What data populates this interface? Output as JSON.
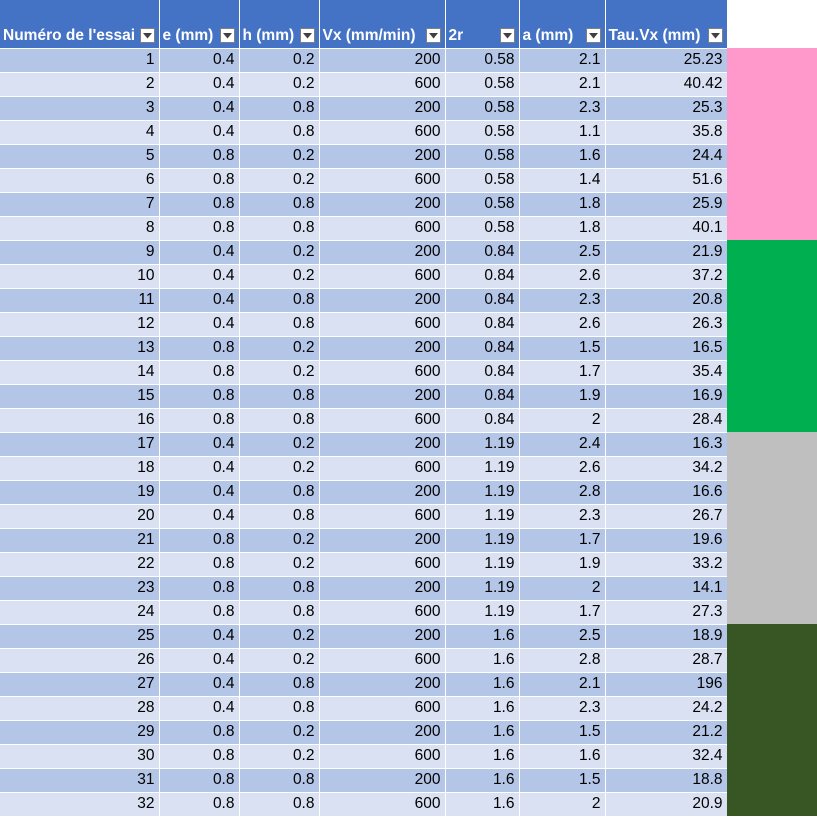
{
  "headers": [
    "Numéro de l'essai",
    "e (mm)",
    "h (mm)",
    "Vx (mm/min)",
    "2r",
    "a (mm)",
    "Tau.Vx (mm)"
  ],
  "rows": [
    [
      "1",
      "0.4",
      "0.2",
      "200",
      "0.58",
      "2.1",
      "25.23"
    ],
    [
      "2",
      "0.4",
      "0.2",
      "600",
      "0.58",
      "2.1",
      "40.42"
    ],
    [
      "3",
      "0.4",
      "0.8",
      "200",
      "0.58",
      "2.3",
      "25.3"
    ],
    [
      "4",
      "0.4",
      "0.8",
      "600",
      "0.58",
      "1.1",
      "35.8"
    ],
    [
      "5",
      "0.8",
      "0.2",
      "200",
      "0.58",
      "1.6",
      "24.4"
    ],
    [
      "6",
      "0.8",
      "0.2",
      "600",
      "0.58",
      "1.4",
      "51.6"
    ],
    [
      "7",
      "0.8",
      "0.8",
      "200",
      "0.58",
      "1.8",
      "25.9"
    ],
    [
      "8",
      "0.8",
      "0.8",
      "600",
      "0.58",
      "1.8",
      "40.1"
    ],
    [
      "9",
      "0.4",
      "0.2",
      "200",
      "0.84",
      "2.5",
      "21.9"
    ],
    [
      "10",
      "0.4",
      "0.2",
      "600",
      "0.84",
      "2.6",
      "37.2"
    ],
    [
      "11",
      "0.4",
      "0.8",
      "200",
      "0.84",
      "2.3",
      "20.8"
    ],
    [
      "12",
      "0.4",
      "0.8",
      "600",
      "0.84",
      "2.6",
      "26.3"
    ],
    [
      "13",
      "0.8",
      "0.2",
      "200",
      "0.84",
      "1.5",
      "16.5"
    ],
    [
      "14",
      "0.8",
      "0.2",
      "600",
      "0.84",
      "1.7",
      "35.4"
    ],
    [
      "15",
      "0.8",
      "0.8",
      "200",
      "0.84",
      "1.9",
      "16.9"
    ],
    [
      "16",
      "0.8",
      "0.8",
      "600",
      "0.84",
      "2",
      "28.4"
    ],
    [
      "17",
      "0.4",
      "0.2",
      "200",
      "1.19",
      "2.4",
      "16.3"
    ],
    [
      "18",
      "0.4",
      "0.2",
      "600",
      "1.19",
      "2.6",
      "34.2"
    ],
    [
      "19",
      "0.4",
      "0.8",
      "200",
      "1.19",
      "2.8",
      "16.6"
    ],
    [
      "20",
      "0.4",
      "0.8",
      "600",
      "1.19",
      "2.3",
      "26.7"
    ],
    [
      "21",
      "0.8",
      "0.2",
      "200",
      "1.19",
      "1.7",
      "19.6"
    ],
    [
      "22",
      "0.8",
      "0.2",
      "600",
      "1.19",
      "1.9",
      "33.2"
    ],
    [
      "23",
      "0.8",
      "0.8",
      "200",
      "1.19",
      "2",
      "14.1"
    ],
    [
      "24",
      "0.8",
      "0.8",
      "600",
      "1.19",
      "1.7",
      "27.3"
    ],
    [
      "25",
      "0.4",
      "0.2",
      "200",
      "1.6",
      "2.5",
      "18.9"
    ],
    [
      "26",
      "0.4",
      "0.2",
      "600",
      "1.6",
      "2.8",
      "28.7"
    ],
    [
      "27",
      "0.4",
      "0.8",
      "200",
      "1.6",
      "2.1",
      "196"
    ],
    [
      "28",
      "0.4",
      "0.8",
      "600",
      "1.6",
      "2.3",
      "24.2"
    ],
    [
      "29",
      "0.8",
      "0.2",
      "200",
      "1.6",
      "1.5",
      "21.2"
    ],
    [
      "30",
      "0.8",
      "0.2",
      "600",
      "1.6",
      "1.6",
      "32.4"
    ],
    [
      "31",
      "0.8",
      "0.8",
      "200",
      "1.6",
      "1.5",
      "18.8"
    ],
    [
      "32",
      "0.8",
      "0.8",
      "600",
      "1.6",
      "2",
      "20.9"
    ]
  ],
  "colors": {
    "header_bg": "#4472c4",
    "row_odd": "#b4c6e7",
    "row_even": "#d9e1f2",
    "band_1": "#ff99cc",
    "band_2": "#00b050",
    "band_3": "#bfbfbf",
    "band_4": "#375623"
  }
}
